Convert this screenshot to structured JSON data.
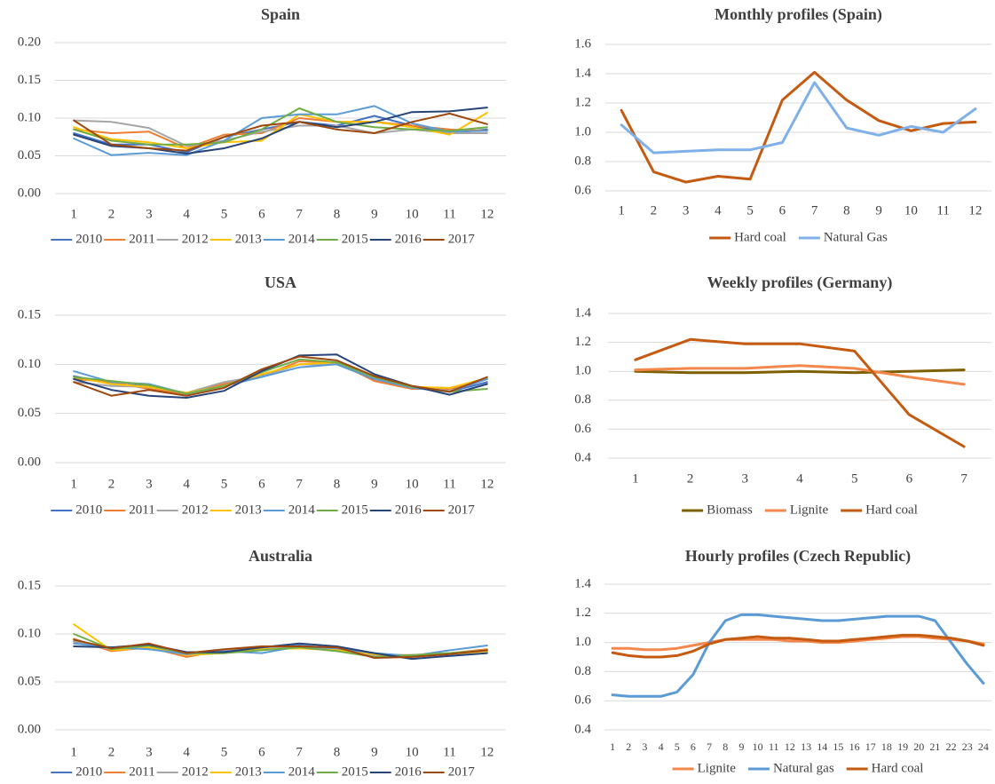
{
  "chart_data": [
    {
      "type": "line",
      "title": "Spain",
      "categories": [
        "1",
        "2",
        "3",
        "4",
        "5",
        "6",
        "7",
        "8",
        "9",
        "10",
        "11",
        "12"
      ],
      "ylim": [
        0,
        0.2
      ],
      "yticks": [
        {
          "value": 0,
          "label": "0.00"
        },
        0.05,
        {
          "value": 0.1,
          "label": "0.10"
        },
        0.15,
        {
          "value": 0.2,
          "label": "0.20"
        }
      ],
      "grid": true,
      "series": [
        {
          "name": "2010",
          "color": "#4472c4",
          "values": [
            0.08,
            0.065,
            0.065,
            0.055,
            0.075,
            0.085,
            0.095,
            0.09,
            0.103,
            0.09,
            0.08,
            0.085
          ]
        },
        {
          "name": "2011",
          "color": "#ed7d31",
          "values": [
            0.085,
            0.08,
            0.082,
            0.06,
            0.078,
            0.08,
            0.1,
            0.095,
            0.095,
            0.09,
            0.085,
            0.083
          ]
        },
        {
          "name": "2012",
          "color": "#a5a5a5",
          "values": [
            0.097,
            0.095,
            0.087,
            0.063,
            0.07,
            0.082,
            0.09,
            0.09,
            0.08,
            0.085,
            0.08,
            0.08
          ]
        },
        {
          "name": "2013",
          "color": "#ffc000",
          "values": [
            0.088,
            0.072,
            0.068,
            0.06,
            0.068,
            0.07,
            0.105,
            0.095,
            0.095,
            0.088,
            0.078,
            0.107
          ]
        },
        {
          "name": "2014",
          "color": "#5b9bd5",
          "values": [
            0.073,
            0.051,
            0.054,
            0.051,
            0.07,
            0.1,
            0.105,
            0.105,
            0.116,
            0.093,
            0.082,
            0.083
          ]
        },
        {
          "name": "2015",
          "color": "#70ad47",
          "values": [
            0.085,
            0.07,
            0.065,
            0.065,
            0.068,
            0.085,
            0.113,
            0.095,
            0.088,
            0.085,
            0.083,
            0.088
          ]
        },
        {
          "name": "2016",
          "color": "#264478",
          "values": [
            0.078,
            0.063,
            0.06,
            0.053,
            0.06,
            0.073,
            0.095,
            0.088,
            0.095,
            0.108,
            0.109,
            0.114
          ]
        },
        {
          "name": "2017",
          "color": "#9e480e",
          "values": [
            0.097,
            0.065,
            0.06,
            0.057,
            0.075,
            0.09,
            0.095,
            0.085,
            0.08,
            0.095,
            0.106,
            0.092
          ]
        }
      ]
    },
    {
      "type": "line",
      "title": "Monthly profiles (Spain)",
      "categories": [
        "1",
        "2",
        "3",
        "4",
        "5",
        "6",
        "7",
        "8",
        "9",
        "10",
        "11",
        "12"
      ],
      "ylim": [
        0.6,
        1.6
      ],
      "yticks": [
        0.6,
        0.8,
        {
          "value": 1.0,
          "label": "1.0"
        },
        1.2,
        1.4,
        1.6
      ],
      "grid": true,
      "series": [
        {
          "name": "Hard coal",
          "color": "#c55a11",
          "values": [
            1.15,
            0.73,
            0.66,
            0.7,
            0.68,
            1.22,
            1.41,
            1.22,
            1.08,
            1.01,
            1.06,
            1.07
          ]
        },
        {
          "name": "Natural Gas",
          "color": "#7fb0e8",
          "values": [
            1.05,
            0.86,
            0.87,
            0.88,
            0.88,
            0.93,
            1.34,
            1.03,
            0.98,
            1.04,
            1.0,
            1.16
          ]
        }
      ]
    },
    {
      "type": "line",
      "title": "USA",
      "categories": [
        "1",
        "2",
        "3",
        "4",
        "5",
        "6",
        "7",
        "8",
        "9",
        "10",
        "11",
        "12"
      ],
      "ylim": [
        0,
        0.15
      ],
      "yticks": [
        {
          "value": 0,
          "label": "0.00"
        },
        0.05,
        {
          "value": 0.1,
          "label": "0.10"
        },
        0.15
      ],
      "grid": true,
      "series": [
        {
          "name": "2010",
          "color": "#4472c4",
          "values": [
            0.088,
            0.08,
            0.078,
            0.07,
            0.08,
            0.088,
            0.1,
            0.1,
            0.085,
            0.078,
            0.072,
            0.082
          ]
        },
        {
          "name": "2011",
          "color": "#ed7d31",
          "values": [
            0.085,
            0.082,
            0.075,
            0.07,
            0.08,
            0.088,
            0.103,
            0.102,
            0.083,
            0.075,
            0.075,
            0.085
          ]
        },
        {
          "name": "2012",
          "color": "#a5a5a5",
          "values": [
            0.082,
            0.078,
            0.077,
            0.071,
            0.082,
            0.088,
            0.1,
            0.1,
            0.087,
            0.078,
            0.073,
            0.085
          ]
        },
        {
          "name": "2013",
          "color": "#ffc000",
          "values": [
            0.087,
            0.08,
            0.077,
            0.071,
            0.078,
            0.09,
            0.1,
            0.102,
            0.087,
            0.077,
            0.076,
            0.086
          ]
        },
        {
          "name": "2014",
          "color": "#5b9bd5",
          "values": [
            0.093,
            0.082,
            0.08,
            0.07,
            0.078,
            0.087,
            0.097,
            0.1,
            0.085,
            0.076,
            0.072,
            0.085
          ]
        },
        {
          "name": "2015",
          "color": "#70ad47",
          "values": [
            0.087,
            0.083,
            0.079,
            0.07,
            0.078,
            0.092,
            0.105,
            0.102,
            0.087,
            0.077,
            0.072,
            0.075
          ]
        },
        {
          "name": "2016",
          "color": "#264478",
          "values": [
            0.085,
            0.074,
            0.068,
            0.066,
            0.073,
            0.093,
            0.109,
            0.11,
            0.09,
            0.078,
            0.069,
            0.08
          ]
        },
        {
          "name": "2017",
          "color": "#9e480e",
          "values": [
            0.082,
            0.068,
            0.074,
            0.068,
            0.076,
            0.095,
            0.108,
            0.104,
            0.088,
            0.078,
            0.072,
            0.087
          ]
        }
      ]
    },
    {
      "type": "line",
      "title": "Weekly profiles (Germany)",
      "categories": [
        "1",
        "2",
        "3",
        "4",
        "5",
        "6",
        "7"
      ],
      "ylim": [
        0.4,
        1.4
      ],
      "yticks": [
        0.4,
        0.6,
        0.8,
        {
          "value": 1.0,
          "label": "1.0"
        },
        1.2,
        1.4
      ],
      "grid": true,
      "series": [
        {
          "name": "Biomass",
          "color": "#7f6000",
          "values": [
            1.0,
            0.99,
            0.99,
            1.0,
            0.99,
            1.0,
            1.01
          ]
        },
        {
          "name": "Lignite",
          "color": "#f4874b",
          "values": [
            1.01,
            1.02,
            1.02,
            1.04,
            1.02,
            0.96,
            0.91
          ]
        },
        {
          "name": "Hard coal",
          "color": "#c55a11",
          "values": [
            1.08,
            1.22,
            1.19,
            1.19,
            1.14,
            0.7,
            0.48
          ]
        }
      ]
    },
    {
      "type": "line",
      "title": "Australia",
      "categories": [
        "1",
        "2",
        "3",
        "4",
        "5",
        "6",
        "7",
        "8",
        "9",
        "10",
        "11",
        "12"
      ],
      "ylim": [
        0,
        0.15
      ],
      "yticks": [
        {
          "value": 0,
          "label": "0.00"
        },
        0.05,
        {
          "value": 0.1,
          "label": "0.10"
        },
        0.15
      ],
      "grid": true,
      "series": [
        {
          "name": "2010",
          "color": "#4472c4",
          "values": [
            0.092,
            0.085,
            0.087,
            0.079,
            0.082,
            0.085,
            0.088,
            0.085,
            0.079,
            0.077,
            0.08,
            0.082
          ]
        },
        {
          "name": "2011",
          "color": "#ed7d31",
          "values": [
            0.095,
            0.082,
            0.086,
            0.076,
            0.083,
            0.086,
            0.086,
            0.084,
            0.078,
            0.078,
            0.08,
            0.084
          ]
        },
        {
          "name": "2012",
          "color": "#a5a5a5",
          "values": [
            0.092,
            0.084,
            0.085,
            0.078,
            0.082,
            0.085,
            0.087,
            0.084,
            0.077,
            0.077,
            0.08,
            0.083
          ]
        },
        {
          "name": "2013",
          "color": "#ffc000",
          "values": [
            0.11,
            0.083,
            0.086,
            0.078,
            0.08,
            0.084,
            0.085,
            0.083,
            0.079,
            0.076,
            0.079,
            0.082
          ]
        },
        {
          "name": "2014",
          "color": "#5b9bd5",
          "values": [
            0.09,
            0.086,
            0.084,
            0.079,
            0.082,
            0.08,
            0.087,
            0.085,
            0.08,
            0.077,
            0.083,
            0.088
          ]
        },
        {
          "name": "2015",
          "color": "#70ad47",
          "values": [
            0.1,
            0.084,
            0.088,
            0.08,
            0.08,
            0.083,
            0.086,
            0.082,
            0.076,
            0.078,
            0.08,
            0.083
          ]
        },
        {
          "name": "2016",
          "color": "#264478",
          "values": [
            0.087,
            0.086,
            0.089,
            0.081,
            0.081,
            0.086,
            0.09,
            0.087,
            0.08,
            0.074,
            0.077,
            0.08
          ]
        },
        {
          "name": "2017",
          "color": "#9e480e",
          "values": [
            0.094,
            0.085,
            0.09,
            0.08,
            0.084,
            0.087,
            0.087,
            0.086,
            0.075,
            0.076,
            0.079,
            0.083
          ]
        }
      ]
    },
    {
      "type": "line",
      "title": "Hourly profiles (Czech Republic)",
      "categories": [
        "1",
        "2",
        "3",
        "4",
        "5",
        "6",
        "7",
        "8",
        "9",
        "10",
        "11",
        "12",
        "13",
        "14",
        "15",
        "16",
        "17",
        "18",
        "19",
        "20",
        "21",
        "22",
        "23",
        "24"
      ],
      "ylim": [
        0.4,
        1.4
      ],
      "yticks": [
        0.4,
        0.6,
        0.8,
        {
          "value": 1.0,
          "label": "1.0"
        },
        1.2,
        1.4
      ],
      "grid": true,
      "series": [
        {
          "name": "Lignite",
          "color": "#f4874b",
          "values": [
            0.96,
            0.96,
            0.95,
            0.95,
            0.96,
            0.98,
            1.0,
            1.02,
            1.02,
            1.02,
            1.02,
            1.01,
            1.01,
            1.0,
            1.0,
            1.01,
            1.02,
            1.03,
            1.04,
            1.04,
            1.03,
            1.02,
            1.01,
            0.99
          ]
        },
        {
          "name": "Natural gas",
          "color": "#5b9bd5",
          "values": [
            0.64,
            0.63,
            0.63,
            0.63,
            0.66,
            0.78,
            1.0,
            1.15,
            1.19,
            1.19,
            1.18,
            1.17,
            1.16,
            1.15,
            1.15,
            1.16,
            1.17,
            1.18,
            1.18,
            1.18,
            1.15,
            1.0,
            0.85,
            0.72
          ]
        },
        {
          "name": "Hard coal",
          "color": "#c55a11",
          "values": [
            0.93,
            0.91,
            0.9,
            0.9,
            0.91,
            0.94,
            0.99,
            1.02,
            1.03,
            1.04,
            1.03,
            1.03,
            1.02,
            1.01,
            1.01,
            1.02,
            1.03,
            1.04,
            1.05,
            1.05,
            1.04,
            1.03,
            1.01,
            0.98
          ]
        }
      ]
    }
  ]
}
